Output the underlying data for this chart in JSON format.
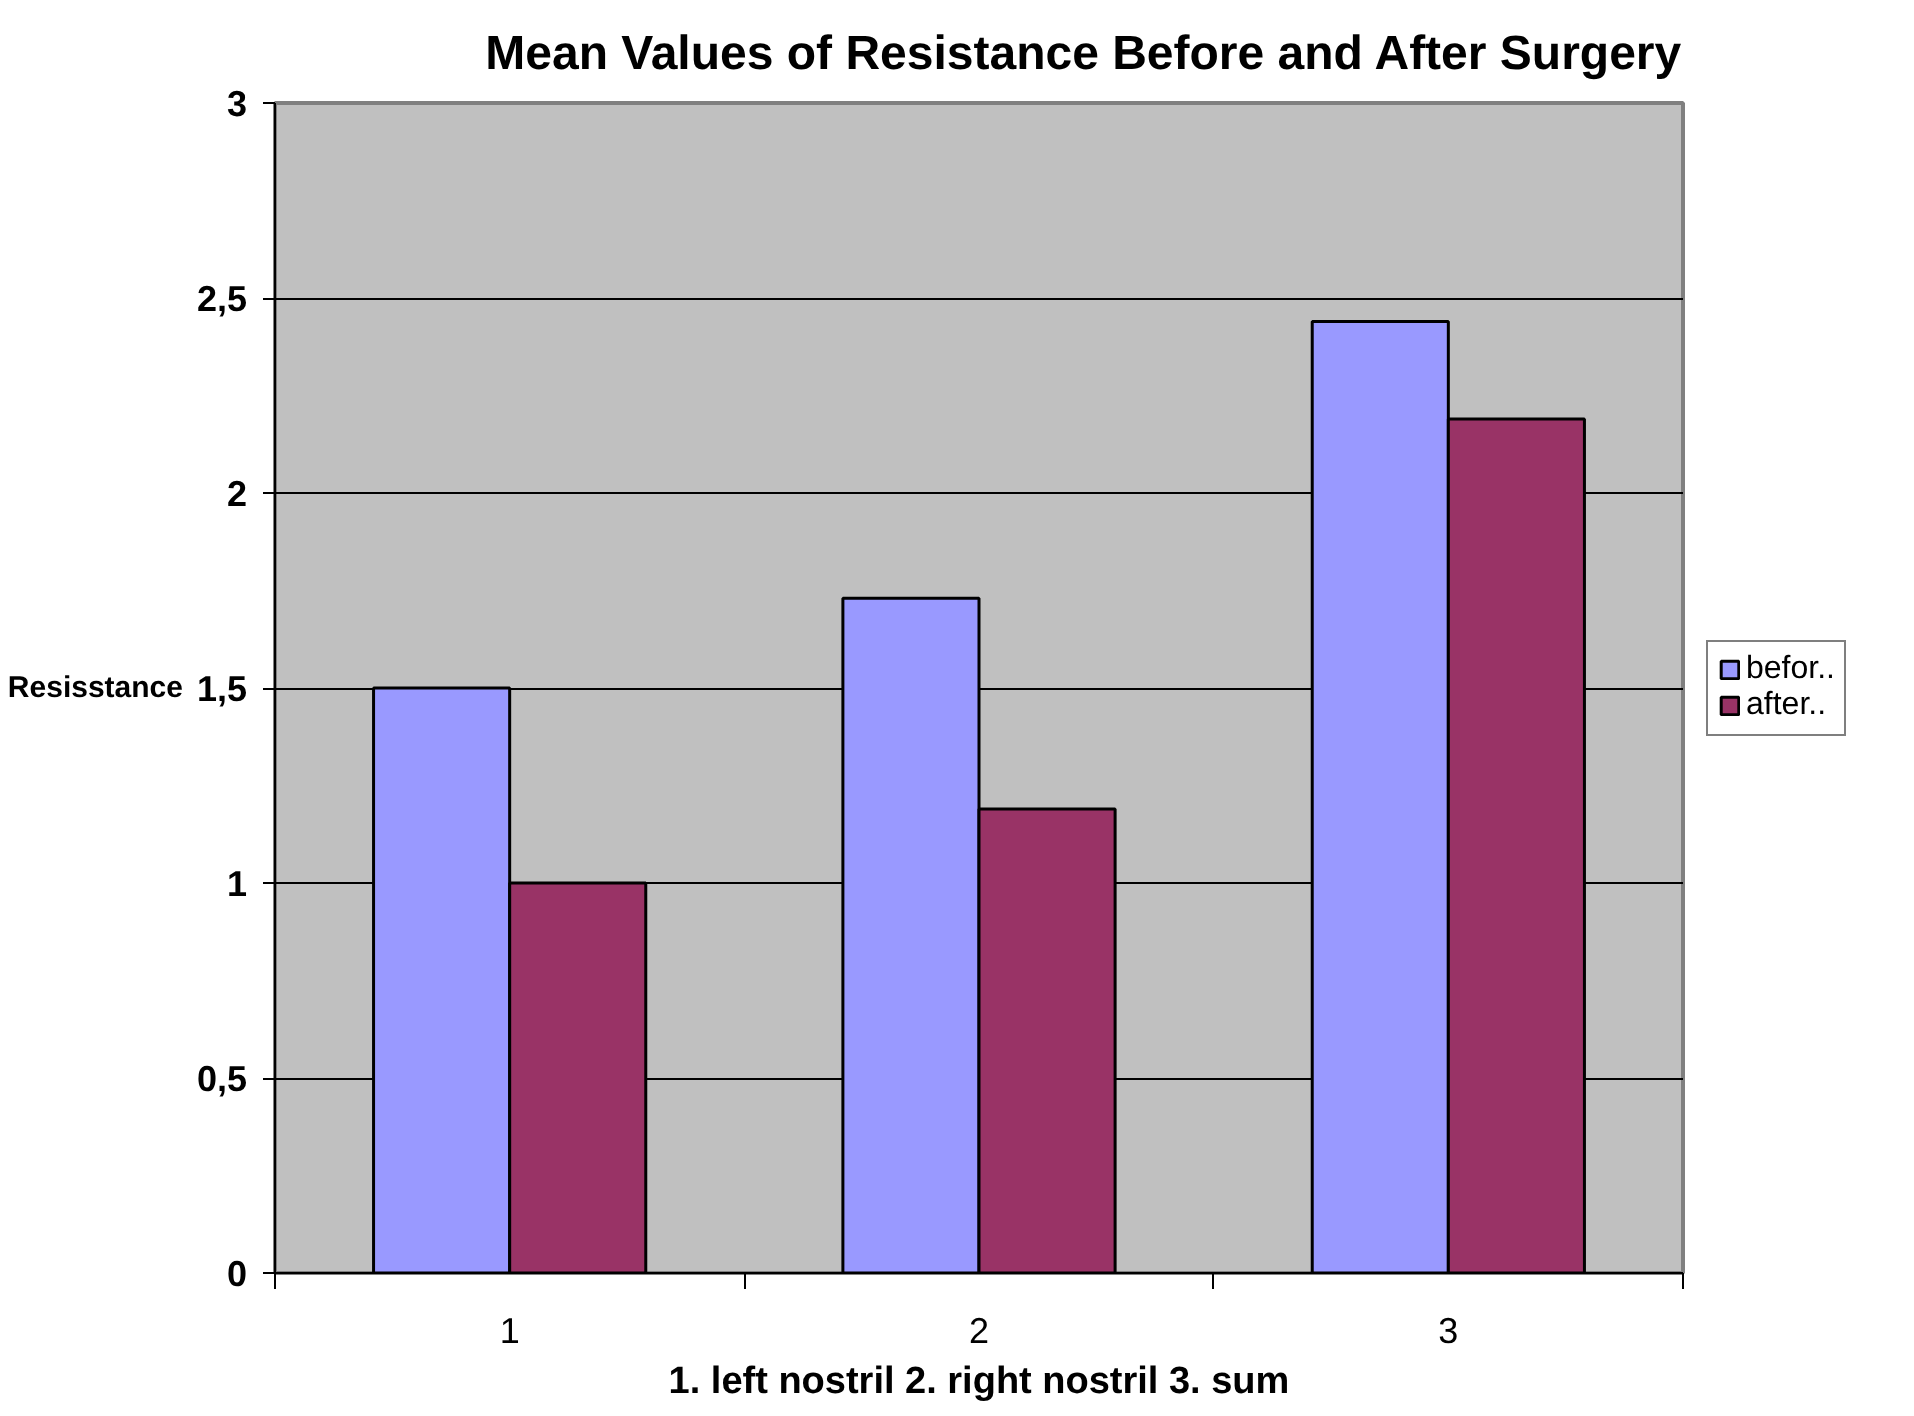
{
  "chart_data": {
    "type": "bar",
    "title": "Mean Values of Resistance Before and After Surgery",
    "xlabel": "1. left nostril 2. right nostril 3. sum",
    "ylabel": "Resisstance",
    "categories": [
      "1",
      "2",
      "3"
    ],
    "series": [
      {
        "name": "befor..",
        "color": "#9999ff",
        "values": [
          1.5,
          1.73,
          2.44
        ]
      },
      {
        "name": "after..",
        "color": "#993366",
        "values": [
          1.0,
          1.19,
          2.19
        ]
      }
    ],
    "ylim": [
      0,
      3
    ],
    "yticks": [
      0,
      {
        "value": 0.5,
        "label": "0,5"
      },
      1,
      {
        "value": 1.5,
        "label": "1,5"
      },
      2,
      {
        "value": 2.5,
        "label": "2,5"
      },
      3
    ],
    "grid": "y",
    "legend": "right"
  }
}
